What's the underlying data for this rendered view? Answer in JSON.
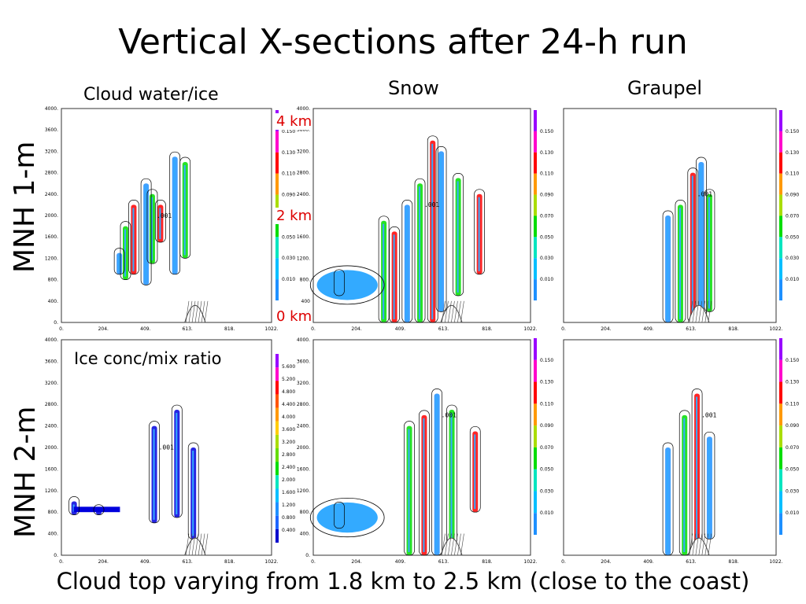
{
  "page": {
    "title": "Vertical X-sections after 24-h run",
    "col_labels": [
      "Cloud water/ice",
      "Snow",
      "Graupel"
    ],
    "row_labels": [
      "MNH 1-m",
      "MNH 2-m"
    ],
    "height_marks": [
      "4 km",
      "2 km",
      "0 km"
    ],
    "ice_label": "Ice conc/mix ratio",
    "footer": "Cloud top varying from 1.8 km to 2.5 km (close to the coast)",
    "contour_label": ".001",
    "colors": {
      "title": "#000000",
      "km_marks": "#dd0000",
      "field_fill": "#33aaff",
      "ice_fill": "#0000dd",
      "contour": "#000000",
      "terrain_hatch": "#444444"
    }
  },
  "chart_data": [
    {
      "type": "heatmap",
      "name": "MNH 1-m Cloud water/ice",
      "x_ticks": [
        "0.",
        "204.",
        "409.",
        "613.",
        "818.",
        "1022."
      ],
      "y_ticks": [
        "0.",
        "400.",
        "800.",
        "1200.",
        "1600.",
        "2000.",
        "2400.",
        "2800.",
        "3200.",
        "3600.",
        "4000."
      ],
      "colorbar": [
        "0.010",
        "0.030",
        "0.050",
        "0.070",
        "0.090",
        "0.110",
        "0.130",
        "0.150"
      ],
      "colorbar_colors": [
        "#1e90ff",
        "#00bfff",
        "#00e5c0",
        "#00dd00",
        "#aadd00",
        "#ff9900",
        "#ff0000",
        "#ff00cc",
        "#9900ff"
      ],
      "cells": [
        [
          280,
          900,
          1300
        ],
        [
          310,
          800,
          1800
        ],
        [
          350,
          900,
          2200
        ],
        [
          410,
          700,
          2600
        ],
        [
          440,
          1100,
          2400
        ],
        [
          480,
          1500,
          2200
        ],
        [
          550,
          900,
          3100
        ],
        [
          600,
          1200,
          3000
        ]
      ]
    },
    {
      "type": "heatmap",
      "name": "MNH 1-m Snow",
      "x_ticks": [
        "0.",
        "204.",
        "409.",
        "613.",
        "818.",
        "1022."
      ],
      "y_ticks": [
        "0.",
        "400",
        "800.",
        "1200.",
        "1600.",
        "2000.",
        "2400.",
        "2800.",
        "3200.",
        "3600.",
        "4000."
      ],
      "colorbar": [
        "0.010",
        "0.030",
        "0.050",
        "0.070",
        "0.090",
        "0.110",
        "0.130",
        "0.150"
      ],
      "colorbar_colors": [
        "#1e90ff",
        "#00bfff",
        "#00e5c0",
        "#00dd00",
        "#aadd00",
        "#ff9900",
        "#ff0000",
        "#ff00cc",
        "#9900ff"
      ],
      "cells": [
        [
          120,
          500,
          900
        ],
        [
          330,
          0,
          1900
        ],
        [
          380,
          0,
          1700
        ],
        [
          440,
          0,
          2200
        ],
        [
          500,
          0,
          2600
        ],
        [
          560,
          0,
          3400
        ],
        [
          600,
          200,
          3200
        ],
        [
          680,
          500,
          2700
        ],
        [
          780,
          900,
          2400
        ]
      ]
    },
    {
      "type": "heatmap",
      "name": "MNH 1-m Graupel",
      "x_ticks": [
        "0.",
        "204.",
        "409.",
        "613.",
        "818.",
        "1022."
      ],
      "y_ticks": [],
      "colorbar": [
        "0.010",
        "0.030",
        "0.050",
        "0.070",
        "0.090",
        "0.110",
        "0.130",
        "0.150"
      ],
      "colorbar_colors": [
        "#1e90ff",
        "#00bfff",
        "#00e5c0",
        "#00dd00",
        "#aadd00",
        "#ff9900",
        "#ff0000",
        "#ff00cc",
        "#9900ff"
      ],
      "cells": [
        [
          500,
          0,
          2000
        ],
        [
          560,
          0,
          2200
        ],
        [
          620,
          0,
          2800
        ],
        [
          660,
          0,
          3000
        ],
        [
          700,
          200,
          2400
        ]
      ]
    },
    {
      "type": "heatmap",
      "name": "MNH 2-m Ice conc/mix ratio",
      "x_ticks": [
        "0.",
        "204.",
        "409.",
        "613.",
        "818.",
        "1022."
      ],
      "y_ticks": [
        "0.",
        "400.",
        "800.",
        "1200.",
        "1600.",
        "2000.",
        "2400.",
        "2800.",
        "3200.",
        "3600.",
        "4000."
      ],
      "colorbar": [
        "0.400",
        "0.800",
        "1.200",
        "1.600",
        "2.000",
        "2.400",
        "2.800",
        "3.200",
        "3.600",
        "4.000",
        "4.400",
        "4.800",
        "5.200",
        "5.600"
      ],
      "colorbar_colors": [
        "#0000cc",
        "#1e66ff",
        "#1e90ff",
        "#00bfff",
        "#00e5c0",
        "#00dd00",
        "#66dd00",
        "#aadd00",
        "#ffcc00",
        "#ff9900",
        "#ff5500",
        "#ff0000",
        "#ff00cc",
        "#9900ff"
      ],
      "cells": [
        [
          60,
          750,
          1000
        ],
        [
          180,
          750,
          850
        ],
        [
          450,
          600,
          2400
        ],
        [
          560,
          700,
          2700
        ],
        [
          640,
          300,
          2000
        ]
      ]
    },
    {
      "type": "heatmap",
      "name": "MNH 2-m Snow",
      "x_ticks": [
        "0.",
        "204.",
        "409.",
        "613.",
        "818.",
        "1022."
      ],
      "y_ticks": [
        "0.",
        "400.",
        "800.",
        "1200.",
        "1600.",
        "2000.",
        "2400.",
        "2800.",
        "3200.",
        "3600.",
        "4000."
      ],
      "colorbar": [
        "0.010",
        "0.030",
        "0.050",
        "0.070",
        "0.090",
        "0.110",
        "0.130",
        "0.150"
      ],
      "colorbar_colors": [
        "#1e90ff",
        "#00bfff",
        "#00e5c0",
        "#00dd00",
        "#aadd00",
        "#ff9900",
        "#ff0000",
        "#ff00cc",
        "#9900ff"
      ],
      "cells": [
        [
          120,
          500,
          900
        ],
        [
          450,
          0,
          2400
        ],
        [
          520,
          0,
          2600
        ],
        [
          580,
          0,
          3000
        ],
        [
          650,
          200,
          2700
        ],
        [
          760,
          800,
          2300
        ]
      ]
    },
    {
      "type": "heatmap",
      "name": "MNH 2-m Graupel",
      "x_ticks": [
        "0.",
        "204.",
        "409.",
        "613.",
        "818.",
        "1022."
      ],
      "y_ticks": [],
      "colorbar": [
        "0.010",
        "0.030",
        "0.050",
        "0.070",
        "0.090",
        "0.110",
        "0.130",
        "0.150"
      ],
      "colorbar_colors": [
        "#1e90ff",
        "#00bfff",
        "#00e5c0",
        "#00dd00",
        "#aadd00",
        "#ff9900",
        "#ff0000",
        "#ff00cc",
        "#9900ff"
      ],
      "cells": [
        [
          500,
          0,
          2000
        ],
        [
          580,
          0,
          2600
        ],
        [
          640,
          0,
          3000
        ],
        [
          700,
          300,
          2200
        ]
      ]
    }
  ]
}
